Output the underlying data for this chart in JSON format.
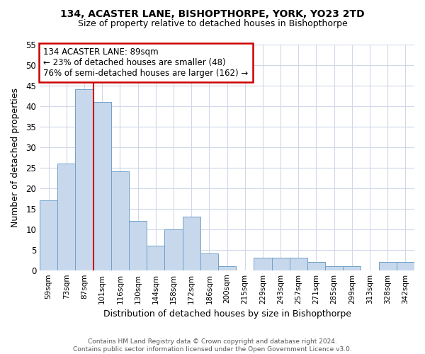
{
  "title1": "134, ACASTER LANE, BISHOPTHORPE, YORK, YO23 2TD",
  "title2": "Size of property relative to detached houses in Bishopthorpe",
  "xlabel": "Distribution of detached houses by size in Bishopthorpe",
  "ylabel": "Number of detached properties",
  "categories": [
    "59sqm",
    "73sqm",
    "87sqm",
    "101sqm",
    "116sqm",
    "130sqm",
    "144sqm",
    "158sqm",
    "172sqm",
    "186sqm",
    "200sqm",
    "215sqm",
    "229sqm",
    "243sqm",
    "257sqm",
    "271sqm",
    "285sqm",
    "299sqm",
    "313sqm",
    "328sqm",
    "342sqm"
  ],
  "values": [
    17,
    26,
    44,
    41,
    24,
    12,
    6,
    10,
    13,
    4,
    1,
    0,
    3,
    3,
    3,
    2,
    1,
    1,
    0,
    2,
    2
  ],
  "bar_color": "#c8d8ec",
  "bar_edgecolor": "#6fa0c8",
  "vline_x": 2.5,
  "vline_color": "#cc0000",
  "annotation_text": "134 ACASTER LANE: 89sqm\n← 23% of detached houses are smaller (48)\n76% of semi-detached houses are larger (162) →",
  "annotation_box_edgecolor": "#cc0000",
  "ylim": [
    0,
    55
  ],
  "yticks": [
    0,
    5,
    10,
    15,
    20,
    25,
    30,
    35,
    40,
    45,
    50,
    55
  ],
  "footer": "Contains HM Land Registry data © Crown copyright and database right 2024.\nContains public sector information licensed under the Open Government Licence v3.0.",
  "bg_color": "#ffffff",
  "plot_bg_color": "#ffffff"
}
